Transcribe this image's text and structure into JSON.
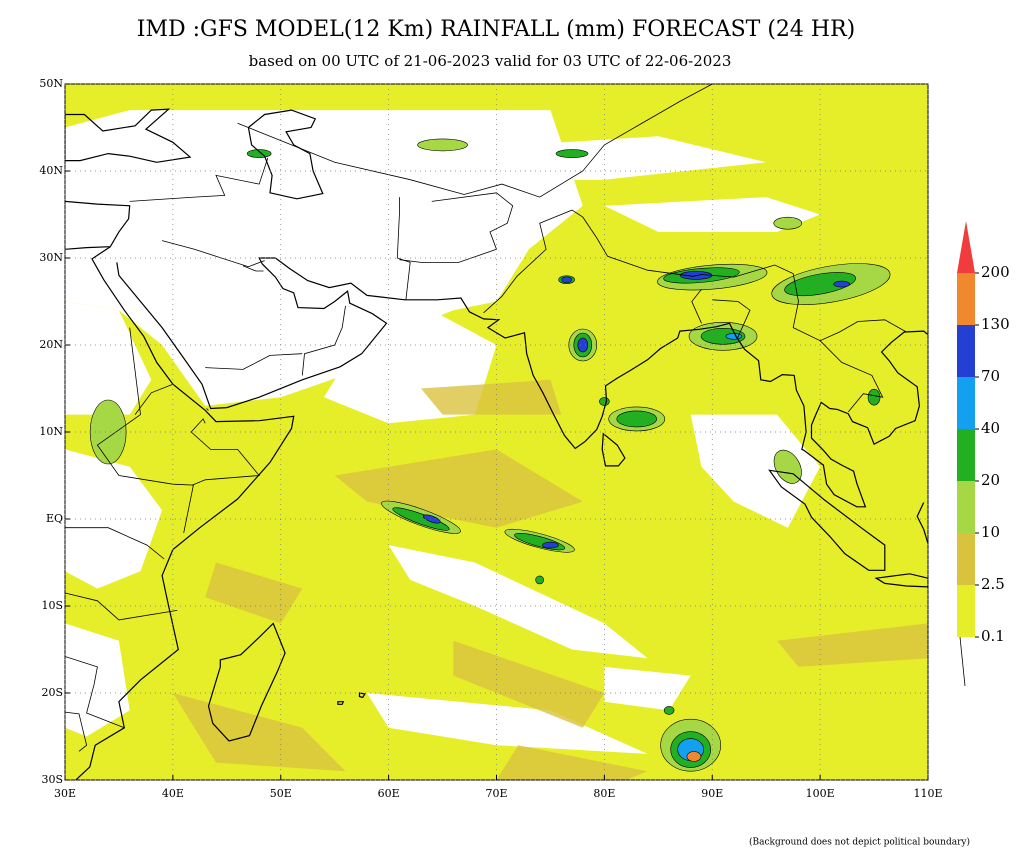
{
  "header": {
    "title": "IMD :GFS MODEL(12 Km) RAINFALL (mm) FORECAST (24 HR)",
    "subtitle": "based on 00 UTC of 21-06-2023 valid for 03 UTC of 22-06-2023"
  },
  "map": {
    "lat_labels": [
      "50N",
      "40N",
      "30N",
      "20N",
      "10N",
      "EQ",
      "10S",
      "20S",
      "30S"
    ],
    "lon_labels": [
      "30E",
      "40E",
      "50E",
      "60E",
      "70E",
      "80E",
      "90E",
      "100E",
      "110E"
    ]
  },
  "colorbar": {
    "levels": [
      0.1,
      2.5,
      10,
      20,
      40,
      70,
      130,
      200
    ],
    "colors": [
      "#e6ee2a",
      "#d9c23e",
      "#a6d845",
      "#22b022",
      "#14a0f0",
      "#2440d4",
      "#f0882e",
      "#f03c3c"
    ]
  },
  "footnote": "(Background does not depict political boundary)"
}
